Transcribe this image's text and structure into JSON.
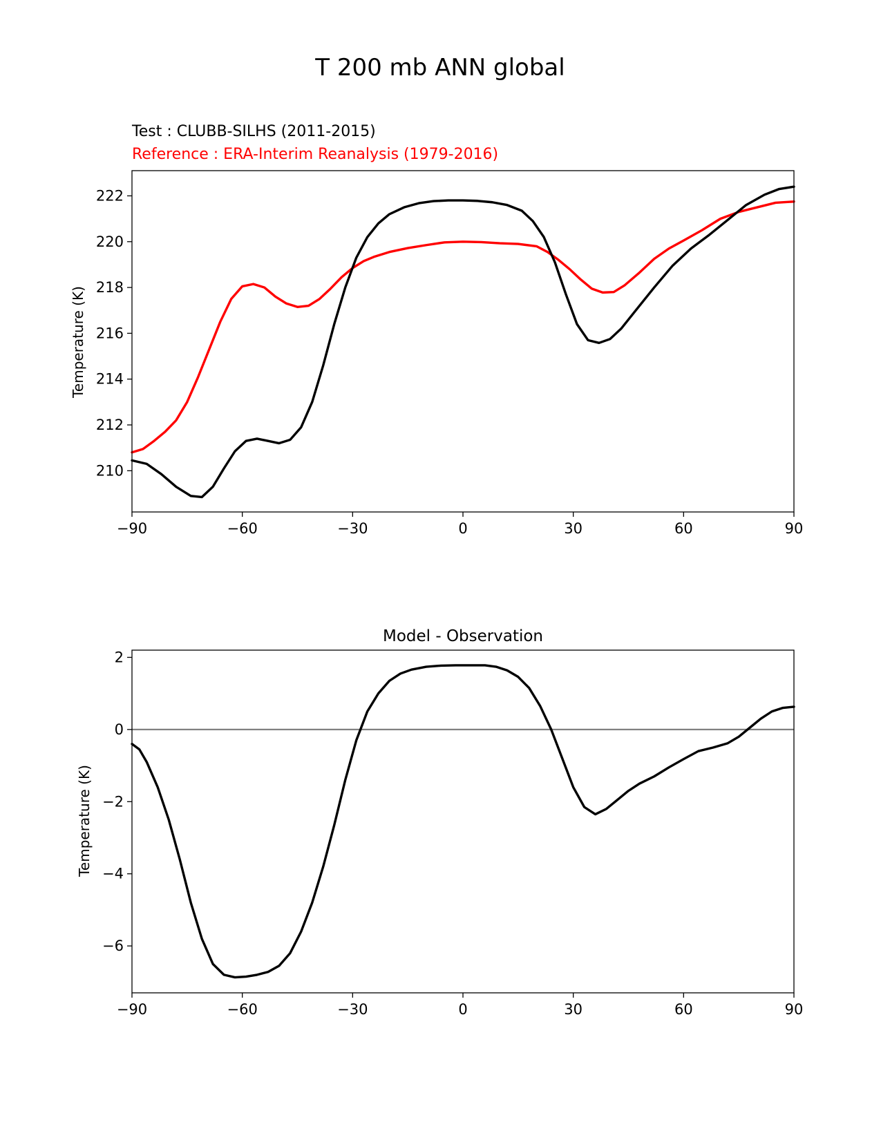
{
  "figure": {
    "title": "T 200 mb ANN global"
  },
  "colors": {
    "test": "#000000",
    "reference": "#ff0000",
    "zero_line": "#808080"
  },
  "chart_data": [
    {
      "type": "line",
      "test_label": "Test : CLUBB-SILHS (2011-2015)",
      "reference_label": "Reference : ERA-Interim Reanalysis (1979-2016)",
      "xlabel": "",
      "ylabel": "Temperature (K)",
      "xlim": [
        -90,
        90
      ],
      "ylim": [
        208.2,
        223.1
      ],
      "xticks": [
        -90,
        -60,
        -30,
        0,
        30,
        60,
        90
      ],
      "xtick_labels": [
        "−90",
        "−60",
        "−30",
        "0",
        "30",
        "60",
        "90"
      ],
      "yticks": [
        210,
        212,
        214,
        216,
        218,
        220,
        222
      ],
      "ytick_labels": [
        "210",
        "212",
        "214",
        "216",
        "218",
        "220",
        "222"
      ],
      "series": [
        {
          "name": "Test : CLUBB-SILHS (2011-2015)",
          "x": [
            -90,
            -86,
            -82,
            -78,
            -74,
            -71,
            -68,
            -65,
            -62,
            -59,
            -56,
            -53,
            -50,
            -47,
            -44,
            -41,
            -38,
            -35,
            -32,
            -29,
            -26,
            -23,
            -20,
            -16,
            -12,
            -8,
            -4,
            0,
            4,
            8,
            12,
            16,
            19,
            22,
            25,
            28,
            31,
            34,
            37,
            40,
            43,
            47,
            52,
            57,
            62,
            67,
            72,
            77,
            82,
            86,
            90
          ],
          "values": [
            210.45,
            210.3,
            209.85,
            209.3,
            208.9,
            208.85,
            209.3,
            210.1,
            210.85,
            211.3,
            211.4,
            211.3,
            211.2,
            211.35,
            211.9,
            213.0,
            214.6,
            216.4,
            218.0,
            219.3,
            220.2,
            220.8,
            221.2,
            221.5,
            221.68,
            221.77,
            221.8,
            221.8,
            221.78,
            221.72,
            221.6,
            221.35,
            220.9,
            220.2,
            219.1,
            217.7,
            216.4,
            215.7,
            215.58,
            215.75,
            216.2,
            217.0,
            218.0,
            218.95,
            219.7,
            220.3,
            220.95,
            221.6,
            222.05,
            222.3,
            222.4
          ]
        },
        {
          "name": "Reference : ERA-Interim Reanalysis (1979-2016)",
          "x": [
            -90,
            -87,
            -84,
            -81,
            -78,
            -75,
            -72,
            -69,
            -66,
            -63,
            -60,
            -57,
            -54,
            -51,
            -48,
            -45,
            -42,
            -39,
            -36,
            -33,
            -30,
            -27,
            -24,
            -20,
            -15,
            -10,
            -5,
            0,
            5,
            10,
            15,
            20,
            23,
            26,
            29,
            32,
            35,
            38,
            41,
            44,
            48,
            52,
            56,
            60,
            65,
            70,
            75,
            80,
            85,
            90
          ],
          "values": [
            210.8,
            210.95,
            211.3,
            211.7,
            212.2,
            213.0,
            214.1,
            215.3,
            216.5,
            217.5,
            218.05,
            218.15,
            218.0,
            217.6,
            217.3,
            217.15,
            217.2,
            217.5,
            217.95,
            218.45,
            218.85,
            219.15,
            219.35,
            219.55,
            219.72,
            219.85,
            219.97,
            220.0,
            219.98,
            219.93,
            219.9,
            219.8,
            219.55,
            219.2,
            218.8,
            218.35,
            217.95,
            217.78,
            217.8,
            218.1,
            218.65,
            219.25,
            219.7,
            220.05,
            220.5,
            221.0,
            221.3,
            221.5,
            221.7,
            221.75
          ]
        }
      ]
    },
    {
      "type": "line",
      "title": "Model - Observation",
      "xlabel": "",
      "ylabel": "Temperature (K)",
      "xlim": [
        -90,
        90
      ],
      "ylim": [
        -7.3,
        2.2
      ],
      "xticks": [
        -90,
        -60,
        -30,
        0,
        30,
        60,
        90
      ],
      "xtick_labels": [
        "−90",
        "−60",
        "−30",
        "0",
        "30",
        "60",
        "90"
      ],
      "yticks": [
        -6,
        -4,
        -2,
        0,
        2
      ],
      "ytick_labels": [
        "−6",
        "−4",
        "−2",
        "0",
        "2"
      ],
      "zero_line": 0,
      "series": [
        {
          "name": "Model - Observation",
          "x": [
            -90,
            -88,
            -86,
            -83,
            -80,
            -77,
            -74,
            -71,
            -68,
            -65,
            -62,
            -59,
            -56,
            -53,
            -50,
            -47,
            -44,
            -41,
            -38,
            -35,
            -32,
            -29,
            -26,
            -23,
            -20,
            -17,
            -14,
            -10,
            -6,
            -2,
            2,
            6,
            9,
            12,
            15,
            18,
            21,
            24,
            27,
            30,
            33,
            36,
            39,
            42,
            45,
            48,
            52,
            56,
            60,
            64,
            68,
            72,
            75,
            78,
            81,
            84,
            87,
            90
          ],
          "values": [
            -0.4,
            -0.55,
            -0.9,
            -1.6,
            -2.5,
            -3.6,
            -4.8,
            -5.8,
            -6.5,
            -6.8,
            -6.87,
            -6.85,
            -6.8,
            -6.72,
            -6.55,
            -6.2,
            -5.6,
            -4.8,
            -3.8,
            -2.65,
            -1.4,
            -0.3,
            0.5,
            1.0,
            1.35,
            1.55,
            1.66,
            1.74,
            1.77,
            1.78,
            1.78,
            1.78,
            1.74,
            1.64,
            1.46,
            1.15,
            0.65,
            0.0,
            -0.8,
            -1.6,
            -2.15,
            -2.35,
            -2.2,
            -1.95,
            -1.7,
            -1.5,
            -1.3,
            -1.05,
            -0.82,
            -0.6,
            -0.5,
            -0.38,
            -0.2,
            0.05,
            0.3,
            0.5,
            0.6,
            0.63
          ]
        }
      ]
    }
  ]
}
